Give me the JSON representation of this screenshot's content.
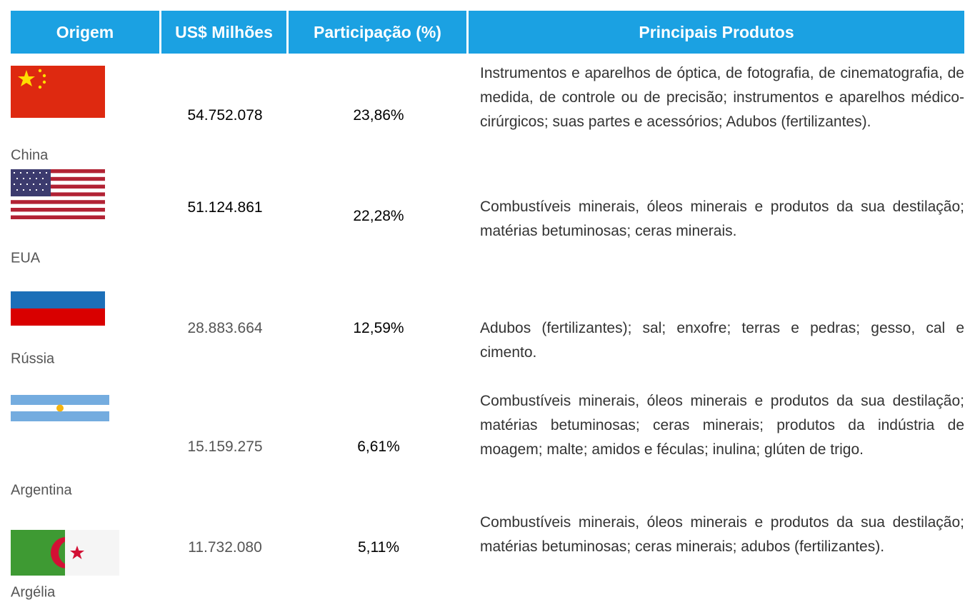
{
  "table": {
    "headers": [
      "Origem",
      "US$ Milhões",
      "Participação (%)",
      "Principais Produtos"
    ],
    "rows": [
      {
        "country": "China",
        "value": "54.752.078",
        "share": "23,86%",
        "products": "Instrumentos e aparelhos de óptica, de fotografia, de cinematografia, de medida, de controle ou de precisão; instrumentos e aparelhos médico-cirúrgicos; suas partes e acessórios; Adubos (fertilizantes)."
      },
      {
        "country": "EUA",
        "value": "51.124.861",
        "share": "22,28%",
        "products": "Combustíveis minerais, óleos minerais e produtos da sua destilação; matérias betuminosas; ceras minerais."
      },
      {
        "country": "Rússia",
        "value": "28.883.664",
        "share": "12,59%",
        "products": "Adubos (fertilizantes); sal; enxofre; terras e pedras; gesso, cal e cimento."
      },
      {
        "country": "Argentina",
        "value": "15.159.275",
        "share": "6,61%",
        "products": "Combustíveis minerais, óleos minerais e produtos da sua destilação; matérias betuminosas; ceras minerais; produtos da indústria de moagem; malte; amidos e féculas; inulina; glúten de trigo."
      },
      {
        "country": "Argélia",
        "value": "11.732.080",
        "share": "5,11%",
        "products": "Combustíveis minerais, óleos minerais e produtos da sua destilação; matérias betuminosas; ceras minerais; adubos (fertilizantes)."
      }
    ]
  }
}
